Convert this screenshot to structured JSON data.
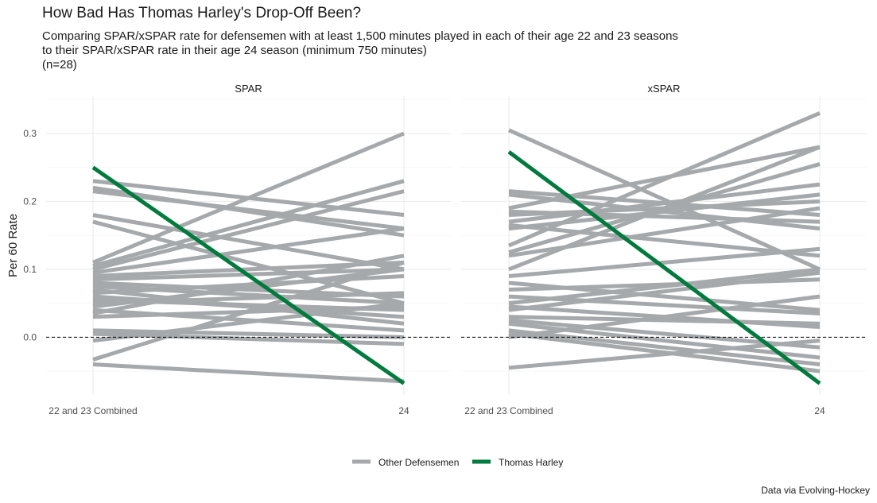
{
  "title": "How Bad Has Thomas Harley's Drop-Off Been?",
  "subtitle_lines": [
    "Comparing SPAR/xSPAR rate for defensemen with at least 1,500 minutes played in each of their age 22 and 23 seasons",
    "to their SPAR/xSPAR rate in their age 24 season (minimum 750 minutes)",
    "(n=28)"
  ],
  "caption": "Data via Evolving-Hockey",
  "colors": {
    "other": "#a5a9ab",
    "highlight": "#007a3d",
    "grid": "#ebebeb",
    "text": "#4d4d4d"
  },
  "chart_data": {
    "type": "line",
    "ylabel": "Per 60 Rate",
    "ylim": [
      -0.085,
      0.355
    ],
    "y_ticks": [
      {
        "value": 0.3,
        "label": "0.3"
      },
      {
        "value": 0.2,
        "label": "0.2"
      },
      {
        "value": 0.1,
        "label": "0.1"
      },
      {
        "value": 0.0,
        "label": "0.0"
      }
    ],
    "x_categories": [
      "22 and 23 Combined",
      "24"
    ],
    "reference_line": {
      "y": 0,
      "style": "dashed"
    },
    "legend": {
      "position": "bottom",
      "items": [
        {
          "label": "Other Defensemen",
          "color": "#a5a9ab"
        },
        {
          "label": "Thomas Harley",
          "color": "#007a3d"
        }
      ]
    },
    "panels": [
      {
        "name": "SPAR",
        "highlight": {
          "name": "Thomas Harley",
          "values": [
            0.25,
            -0.068
          ]
        },
        "others": [
          [
            0.23,
            0.18
          ],
          [
            0.22,
            0.15
          ],
          [
            0.215,
            0.16
          ],
          [
            0.18,
            0.1
          ],
          [
            0.17,
            0.05
          ],
          [
            0.11,
            0.3
          ],
          [
            0.105,
            0.23
          ],
          [
            0.1,
            0.215
          ],
          [
            0.095,
            0.16
          ],
          [
            0.09,
            0.11
          ],
          [
            0.085,
            0.1
          ],
          [
            0.08,
            0.06
          ],
          [
            0.075,
            0.05
          ],
          [
            0.07,
            0.02
          ],
          [
            0.065,
            0.09
          ],
          [
            0.06,
            0.03
          ],
          [
            0.055,
            0.04
          ],
          [
            0.05,
            0.065
          ],
          [
            0.045,
            0.1
          ],
          [
            0.04,
            0.01
          ],
          [
            0.035,
            0.12
          ],
          [
            0.03,
            0.045
          ],
          [
            0.01,
            0.0
          ],
          [
            0.005,
            -0.01
          ],
          [
            -0.005,
            0.05
          ],
          [
            -0.033,
            0.11
          ],
          [
            -0.04,
            -0.065
          ]
        ]
      },
      {
        "name": "xSPAR",
        "highlight": {
          "name": "Thomas Harley",
          "values": [
            0.273,
            -0.068
          ]
        },
        "others": [
          [
            0.305,
            0.1
          ],
          [
            0.215,
            0.18
          ],
          [
            0.21,
            0.16
          ],
          [
            0.19,
            0.28
          ],
          [
            0.185,
            0.17
          ],
          [
            0.18,
            0.2
          ],
          [
            0.17,
            0.225
          ],
          [
            0.165,
            0.12
          ],
          [
            0.16,
            0.21
          ],
          [
            0.135,
            0.33
          ],
          [
            0.125,
            0.255
          ],
          [
            0.12,
            0.19
          ],
          [
            0.1,
            0.28
          ],
          [
            0.09,
            0.13
          ],
          [
            0.08,
            0.04
          ],
          [
            0.07,
            0.085
          ],
          [
            0.06,
            0.035
          ],
          [
            0.05,
            0.1
          ],
          [
            0.045,
            0.015
          ],
          [
            0.04,
            0.095
          ],
          [
            0.03,
            0.02
          ],
          [
            0.025,
            -0.015
          ],
          [
            0.02,
            -0.03
          ],
          [
            0.01,
            -0.04
          ],
          [
            0.005,
            -0.05
          ],
          [
            0.0,
            0.06
          ],
          [
            -0.045,
            -0.005
          ]
        ]
      }
    ]
  }
}
